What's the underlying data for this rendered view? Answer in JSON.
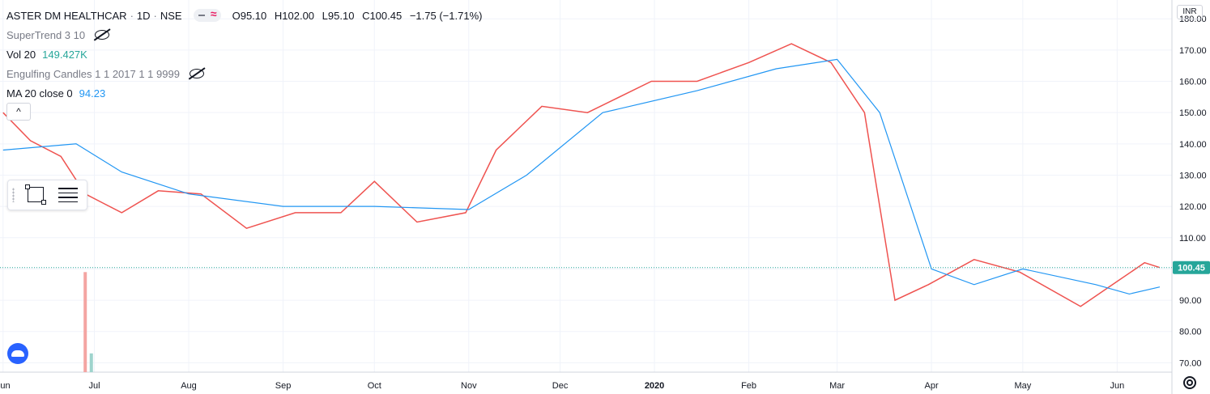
{
  "header": {
    "symbol": "ASTER DM HEALTHCAR",
    "interval": "1D",
    "exchange": "NSE",
    "separator": "·",
    "open": "O95.10",
    "high": "H102.00",
    "low": "L95.10",
    "close": "C100.45",
    "change": "−1.75 (−1.71%)"
  },
  "indicators": {
    "supertrend": "SuperTrend 3 10",
    "volume": "Vol 20",
    "volume_value": "149.427K",
    "engulfing": "Engulfing Candles 1 1 2017 1 1 9999",
    "ma": "MA 20 close 0",
    "ma_value": "94.23"
  },
  "currency": "INR",
  "collapse_label": "^",
  "colors": {
    "up": "#26a69a",
    "down": "#ef5350",
    "ma": "#2196f3",
    "price_label_bg": "#26a69a"
  },
  "chart_data": {
    "type": "line",
    "y_axis_ticks": [
      70,
      80,
      90,
      100,
      110,
      120,
      130,
      140,
      150,
      160,
      170,
      180
    ],
    "ylim": [
      67,
      186
    ],
    "x_axis_labels": [
      "Jun",
      "Jul",
      "Aug",
      "Sep",
      "Oct",
      "Nov",
      "Dec",
      "2020",
      "Feb",
      "Mar",
      "Apr",
      "May",
      "Jun"
    ],
    "last_price": 100.45,
    "last_price_label": "100.45",
    "price_series": [
      {
        "date": "2019-06-01",
        "value": 150
      },
      {
        "date": "2019-06-10",
        "value": 141
      },
      {
        "date": "2019-06-20",
        "value": 136
      },
      {
        "date": "2019-06-28",
        "value": 124
      },
      {
        "date": "2019-07-10",
        "value": 118
      },
      {
        "date": "2019-07-22",
        "value": 125
      },
      {
        "date": "2019-08-05",
        "value": 124
      },
      {
        "date": "2019-08-20",
        "value": 113
      },
      {
        "date": "2019-09-05",
        "value": 118
      },
      {
        "date": "2019-09-20",
        "value": 118
      },
      {
        "date": "2019-10-01",
        "value": 128
      },
      {
        "date": "2019-10-15",
        "value": 115
      },
      {
        "date": "2019-10-31",
        "value": 118
      },
      {
        "date": "2019-11-10",
        "value": 138
      },
      {
        "date": "2019-11-25",
        "value": 152
      },
      {
        "date": "2019-12-10",
        "value": 150
      },
      {
        "date": "2019-12-31",
        "value": 160
      },
      {
        "date": "2020-01-15",
        "value": 160
      },
      {
        "date": "2020-02-01",
        "value": 166
      },
      {
        "date": "2020-02-15",
        "value": 172
      },
      {
        "date": "2020-02-28",
        "value": 166
      },
      {
        "date": "2020-03-10",
        "value": 150
      },
      {
        "date": "2020-03-20",
        "value": 90
      },
      {
        "date": "2020-03-31",
        "value": 95
      },
      {
        "date": "2020-04-15",
        "value": 103
      },
      {
        "date": "2020-04-30",
        "value": 99
      },
      {
        "date": "2020-05-20",
        "value": 88
      },
      {
        "date": "2020-06-01",
        "value": 96
      },
      {
        "date": "2020-06-10",
        "value": 102
      },
      {
        "date": "2020-06-15",
        "value": 100.45
      }
    ],
    "ma_series": [
      {
        "date": "2019-06-01",
        "value": 138
      },
      {
        "date": "2019-06-25",
        "value": 140
      },
      {
        "date": "2019-07-10",
        "value": 131
      },
      {
        "date": "2019-08-01",
        "value": 124
      },
      {
        "date": "2019-09-01",
        "value": 120
      },
      {
        "date": "2019-10-01",
        "value": 120
      },
      {
        "date": "2019-11-01",
        "value": 119
      },
      {
        "date": "2019-11-20",
        "value": 130
      },
      {
        "date": "2019-12-15",
        "value": 150
      },
      {
        "date": "2020-01-15",
        "value": 157
      },
      {
        "date": "2020-02-10",
        "value": 164
      },
      {
        "date": "2020-03-01",
        "value": 167
      },
      {
        "date": "2020-03-15",
        "value": 150
      },
      {
        "date": "2020-04-01",
        "value": 100
      },
      {
        "date": "2020-04-15",
        "value": 95
      },
      {
        "date": "2020-05-01",
        "value": 100
      },
      {
        "date": "2020-05-25",
        "value": 95
      },
      {
        "date": "2020-06-05",
        "value": 92
      },
      {
        "date": "2020-06-15",
        "value": 94.23
      }
    ],
    "volume_spikes": [
      {
        "date": "2019-06-28",
        "value": 99
      },
      {
        "date": "2019-06-30",
        "value": 73
      }
    ]
  }
}
